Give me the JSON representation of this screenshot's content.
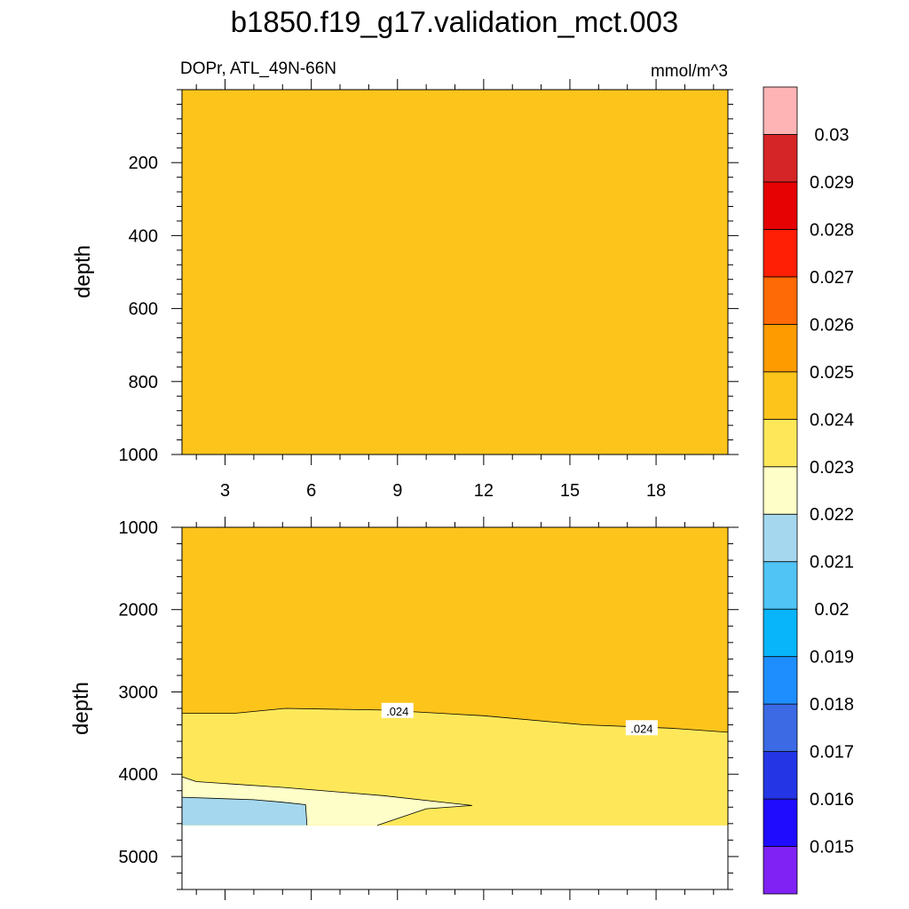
{
  "title": "b1850.f19_g17.validation_mct.003",
  "subtitle_left": "DOPr, ATL_49N-66N",
  "subtitle_right": "mmol/m^3",
  "chart_data": {
    "type": "contour",
    "field": "DOPr",
    "region": "ATL_49N-66N",
    "units": "mmol/m^3",
    "x_range": [
      1.5,
      20.5
    ],
    "panels": [
      {
        "name": "upper",
        "ylabel": "depth",
        "y_range": [
          0,
          1000
        ],
        "y_ticks": [
          200,
          400,
          600,
          800,
          1000
        ],
        "x_ticks": [
          3,
          6,
          9,
          12,
          15,
          18
        ],
        "regions": [
          {
            "level_range": [
              0.024,
              0.025
            ],
            "color": "#FDC41C",
            "polygon": [
              [
                1.5,
                0
              ],
              [
                20.5,
                0
              ],
              [
                20.5,
                1000
              ],
              [
                1.5,
                1000
              ]
            ]
          }
        ],
        "contours": []
      },
      {
        "name": "lower",
        "ylabel": "depth",
        "y_range": [
          1000,
          5400
        ],
        "y_ticks": [
          1000,
          2000,
          3000,
          4000,
          5000
        ],
        "x_ticks": [
          3,
          6,
          9,
          12,
          15,
          18
        ],
        "regions": [
          {
            "level_range": [
              0.024,
              0.025
            ],
            "color": "#FDC41C",
            "polygon": [
              [
                1.5,
                1000
              ],
              [
                20.5,
                1000
              ],
              [
                20.5,
                4620
              ],
              [
                1.5,
                4620
              ]
            ]
          },
          {
            "level_range": [
              0.023,
              0.024
            ],
            "color": "#FEE85A",
            "polygon": [
              [
                1.5,
                3260
              ],
              [
                3.3,
                3260
              ],
              [
                5.1,
                3200
              ],
              [
                8.5,
                3220
              ],
              [
                12,
                3290
              ],
              [
                15.5,
                3400
              ],
              [
                18.5,
                3440
              ],
              [
                20.5,
                3490
              ],
              [
                20.5,
                4620
              ],
              [
                1.5,
                4620
              ]
            ]
          },
          {
            "level_range": [
              0.022,
              0.023
            ],
            "color": "#FEFEC8",
            "polygon": [
              [
                1.5,
                4030
              ],
              [
                2,
                4090
              ],
              [
                5,
                4160
              ],
              [
                8.5,
                4260
              ],
              [
                11.6,
                4380
              ],
              [
                10,
                4420
              ],
              [
                8.3,
                4620
              ],
              [
                1.5,
                4620
              ]
            ]
          },
          {
            "level_range": [
              0.021,
              0.022
            ],
            "color": "#A5D8EE",
            "polygon": [
              [
                1.5,
                4280
              ],
              [
                4,
                4310
              ],
              [
                5,
                4340
              ],
              [
                5.8,
                4370
              ],
              [
                5.85,
                4620
              ],
              [
                1.5,
                4620
              ]
            ]
          }
        ],
        "contours": [
          {
            "level": ".024",
            "points": [
              [
                1.5,
                3260
              ],
              [
                3.3,
                3260
              ],
              [
                5.1,
                3200
              ],
              [
                8.5,
                3220
              ],
              [
                12,
                3290
              ],
              [
                15.5,
                3400
              ],
              [
                18.5,
                3440
              ],
              [
                20.5,
                3490
              ]
            ],
            "labels": [
              {
                "x": 9.0,
                "y": 3230
              },
              {
                "x": 17.5,
                "y": 3440
              }
            ]
          },
          {
            "level": ".023",
            "points": [
              [
                1.5,
                4030
              ],
              [
                2,
                4090
              ],
              [
                5,
                4160
              ],
              [
                8.5,
                4260
              ],
              [
                11.6,
                4380
              ],
              [
                10,
                4420
              ],
              [
                8.3,
                4620
              ]
            ],
            "labels": []
          },
          {
            "level": ".022",
            "points": [
              [
                1.5,
                4280
              ],
              [
                4,
                4310
              ],
              [
                5,
                4340
              ],
              [
                5.8,
                4370
              ],
              [
                5.85,
                4620
              ]
            ],
            "labels": []
          }
        ]
      }
    ],
    "colorbar": {
      "colors": [
        "#7F22F3",
        "#1F0CFE",
        "#2335E5",
        "#3B6AE4",
        "#1E8EFE",
        "#08B5FB",
        "#4FC4F5",
        "#A5D8EE",
        "#FEFEC8",
        "#FEE85A",
        "#FDC41C",
        "#FE9B01",
        "#FE6A05",
        "#FE1F05",
        "#E60102",
        "#D62526",
        "#FEB4B4"
      ],
      "labels": [
        "0.015",
        "0.016",
        "0.017",
        "0.018",
        "0.019",
        "0.02",
        "0.021",
        "0.022",
        "0.023",
        "0.024",
        "0.025",
        "0.026",
        "0.027",
        "0.028",
        "0.029",
        "0.03"
      ]
    }
  }
}
